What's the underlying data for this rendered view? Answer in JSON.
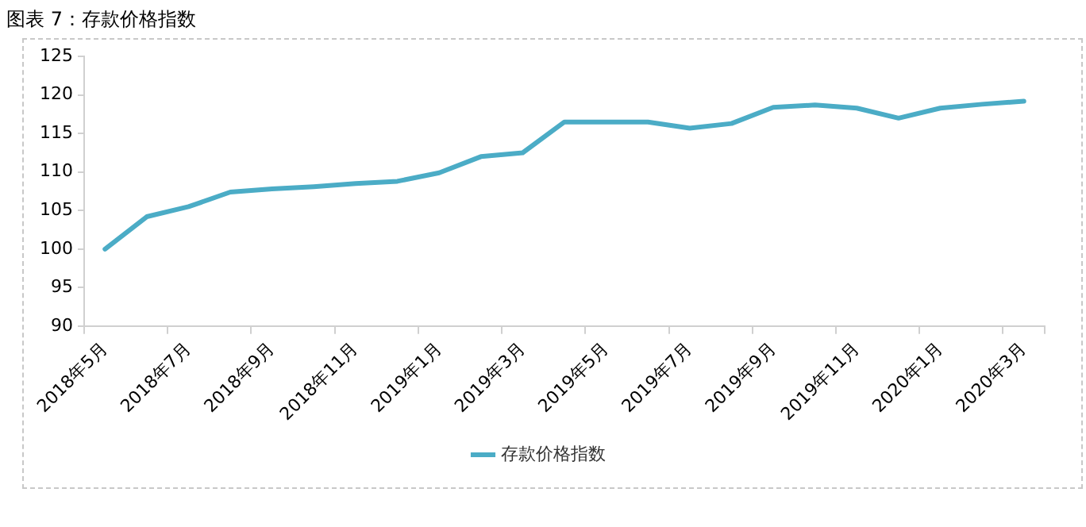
{
  "chart_data": {
    "type": "line",
    "title": "图表 7：存款价格指数",
    "categories": [
      "2018年5月",
      null,
      "2018年7月",
      null,
      "2018年9月",
      null,
      "2018年11月",
      null,
      "2019年1月",
      null,
      "2019年3月",
      null,
      "2019年5月",
      null,
      "2019年7月",
      null,
      "2019年9月",
      null,
      "2019年11月",
      null,
      "2020年1月",
      null,
      "2020年3月"
    ],
    "series": [
      {
        "name": "存款价格指数",
        "color": "#4bacc6",
        "values": [
          100,
          104.2,
          105.5,
          107.4,
          107.8,
          108.1,
          108.5,
          108.8,
          109.9,
          112.0,
          112.5,
          116.5,
          116.5,
          116.5,
          115.7,
          116.3,
          118.4,
          118.7,
          118.3,
          117.0,
          118.3,
          118.8,
          119.2
        ]
      }
    ],
    "ylim": [
      90,
      125
    ],
    "yticks": [
      90,
      95,
      100,
      105,
      110,
      115,
      120,
      125
    ],
    "grid": false,
    "legend": "bottom",
    "marker": "none",
    "line_style": "solid"
  }
}
